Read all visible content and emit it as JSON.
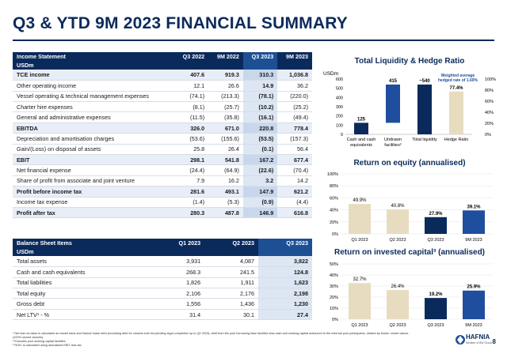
{
  "title": "Q3 & YTD 9M 2023 FINANCIAL SUMMARY",
  "income": {
    "header": [
      "Income Statement",
      "Q3 2022",
      "9M 2022",
      "Q3 2023",
      "9M 2023"
    ],
    "subheader": "USDm",
    "rows": [
      {
        "label": "TCE income",
        "vals": [
          "407.6",
          "919.3",
          "310.3",
          "1,036.8"
        ],
        "bold": true
      },
      {
        "label": "Other operating income",
        "vals": [
          "12.1",
          "26.6",
          "14.9",
          "36.2"
        ]
      },
      {
        "label": "Vessel operating & technical management expenses",
        "vals": [
          "(74.1)",
          "(213.3)",
          "(78.1)",
          "(220.0)"
        ]
      },
      {
        "label": "Charter hire expenses",
        "vals": [
          "(8.1)",
          "(25.7)",
          "(10.2)",
          "(25.2)"
        ]
      },
      {
        "label": "General and administrative expenses",
        "vals": [
          "(11.5)",
          "(35.8)",
          "(16.1)",
          "(49.4)"
        ]
      },
      {
        "label": "EBITDA",
        "vals": [
          "326.0",
          "671.0",
          "220.8",
          "778.4"
        ],
        "bold": true
      },
      {
        "label": "Depreciation and amortisation charges",
        "vals": [
          "(53.6)",
          "(155.6)",
          "(53.5)",
          "(157.3)"
        ]
      },
      {
        "label": "Gain/(Loss) on disposal of assets",
        "vals": [
          "25.8",
          "26.4",
          "(0.1)",
          "56.4"
        ]
      },
      {
        "label": "EBIT",
        "vals": [
          "298.1",
          "541.8",
          "167.2",
          "677.4"
        ],
        "bold": true
      },
      {
        "label": "Net financial expense",
        "vals": [
          "(24.4)",
          "(64.9)",
          "(22.6)",
          "(70.4)"
        ]
      },
      {
        "label": "Share of profit from associate and joint venture",
        "vals": [
          "7.9",
          "16.2",
          "3.2",
          "14.2"
        ]
      },
      {
        "label": "Profit before income tax",
        "vals": [
          "281.6",
          "493.1",
          "147.9",
          "621.2"
        ],
        "bold": true
      },
      {
        "label": "Income tax expense",
        "vals": [
          "(1.4)",
          "(5.3)",
          "(0.9)",
          "(4.4)"
        ]
      },
      {
        "label": "Profit after tax",
        "vals": [
          "280.3",
          "487.8",
          "146.9",
          "616.8"
        ],
        "bold": true
      }
    ]
  },
  "balance": {
    "header": [
      "Balance Sheet Items",
      "Q1 2023",
      "Q2 2023",
      "Q3 2023"
    ],
    "subheader": "USDm",
    "rows": [
      {
        "label": "Total assets",
        "vals": [
          "3,931",
          "4,087",
          "3,822"
        ]
      },
      {
        "label": "Cash and cash equivalents",
        "vals": [
          "268.3",
          "241.5",
          "124.8"
        ]
      },
      {
        "label": "Total liabilities",
        "vals": [
          "1,826",
          "1,911",
          "1,623"
        ]
      },
      {
        "label": "Total equity",
        "vals": [
          "2,106",
          "2,176",
          "2,198"
        ]
      },
      {
        "label": "Gross debt",
        "vals": [
          "1,556",
          "1,436",
          "1,230"
        ]
      },
      {
        "label": "Net LTV¹ - %",
        "vals": [
          "31.4",
          "30.1",
          "27.4"
        ]
      }
    ]
  },
  "chart_data": [
    {
      "type": "bar",
      "title": "Total Liquidity & Hedge Ratio",
      "ylabel": "USDm",
      "categories": [
        "Cash and cash equivalents",
        "Undrawn facilities²",
        "Total liquidity",
        "Hedge Ratio"
      ],
      "values": [
        125,
        415,
        540,
        77.4
      ],
      "value_labels": [
        "125",
        "415",
        "~540",
        "77.4%"
      ],
      "y_ticks": [
        "0",
        "100",
        "200",
        "300",
        "400",
        "500",
        "600"
      ],
      "y2_ticks": [
        "0%",
        "20%",
        "40%",
        "60%",
        "80%",
        "100%"
      ],
      "ylim": [
        0,
        600
      ],
      "y2lim": [
        0,
        100
      ],
      "annotation": "Weighted average hedged rate of 1.60%",
      "colors": {
        "navy": "#0b2a5c",
        "blue": "#1f4e9e",
        "tan": "#e8dcc0"
      }
    },
    {
      "type": "bar",
      "title": "Return on equity (annualised)",
      "categories": [
        "Q1 2023",
        "Q2 2023",
        "Q3 2023",
        "9M 2023"
      ],
      "values": [
        49.9,
        40.8,
        27.9,
        39.1
      ],
      "value_labels": [
        "49.9%",
        "40.8%",
        "27.9%",
        "39.1%"
      ],
      "y_ticks": [
        "0%",
        "20%",
        "40%",
        "60%",
        "80%",
        "100%"
      ],
      "ylim": [
        0,
        100
      ],
      "colors": [
        "#e8dcc0",
        "#e8dcc0",
        "#0b2a5c",
        "#1f4e9e"
      ]
    },
    {
      "type": "bar",
      "title": "Return on invested capital³ (annualised)",
      "categories": [
        "Q1 2023",
        "Q2 2023",
        "Q3 2023",
        "9M 2023"
      ],
      "values": [
        32.7,
        26.4,
        19.2,
        25.9
      ],
      "value_labels": [
        "32.7%",
        "26.4%",
        "19.2%",
        "25.9%"
      ],
      "y_ticks": [
        "0%",
        "10%",
        "20%",
        "30%",
        "40%",
        "50%"
      ],
      "ylim": [
        0,
        50
      ],
      "colors": [
        "#e8dcc0",
        "#e8dcc0",
        "#0b2a5c",
        "#1f4e9e"
      ]
    }
  ],
  "footnotes": [
    "¹ Net loan-to-value is calculated as vessel bank and finance lease debt (excluding debt for vessels sold but pending legal completion up to Q2 2023), debt from the pool borrowing base facilities less cash and working capital advanced to the external pool participants, divided by broker vessel values (100% owned vessels).",
    "² Excludes pool working capital facilities",
    "³ ROIC is calculated using annualised EBIT less tax"
  ],
  "logo": {
    "name": "HAFNIA",
    "sub": "Member of BW Group"
  },
  "page_number": "8"
}
